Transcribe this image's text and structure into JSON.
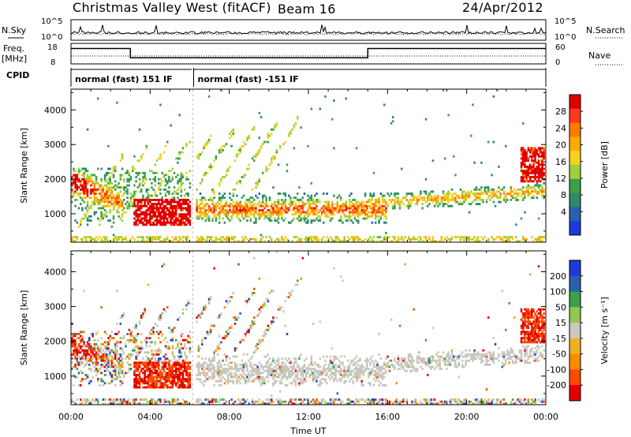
{
  "header": {
    "station": "Christmas Valley West (fitACF)",
    "beam": "Beam 16",
    "date": "24/Apr/2012"
  },
  "strips": {
    "nsky_label": "N.Sky",
    "nsky_ticks": [
      "10^5",
      "10^0"
    ],
    "nsearch_label": "N.Search",
    "nsearch_ticks": [
      "10^5",
      "10^0"
    ],
    "freq_label": "Freq.",
    "freq_unit": "[MHz]",
    "freq_ticks": [
      "18",
      "8"
    ],
    "nave_label": "Nave",
    "nave_ticks": [
      "60",
      "0"
    ],
    "cpid_label": "CPID",
    "cpid_segments": [
      {
        "label": "normal (fast) 151 IF",
        "start_hour": 0.0,
        "end_hour": 6.1
      },
      {
        "label": "normal (fast) -151 IF",
        "start_hour": 6.2,
        "end_hour": 24.0
      }
    ],
    "freq_steps": [
      {
        "start_hour": 0.0,
        "end_hour": 3.0,
        "level": 0.25
      },
      {
        "start_hour": 3.0,
        "end_hour": 6.1,
        "level": 0.7
      },
      {
        "start_hour": 6.2,
        "end_hour": 15.0,
        "level": 0.7
      },
      {
        "start_hour": 15.0,
        "end_hour": 24.0,
        "level": 0.25
      }
    ]
  },
  "chart_data": [
    {
      "type": "heatmap",
      "name": "power",
      "xlabel": "Time UT",
      "ylabel": "Slant Range [km]",
      "x_range_hours": [
        0,
        24
      ],
      "ylim": [
        180,
        4600
      ],
      "x_tick_labels": [
        "00:00",
        "04:00",
        "08:00",
        "12:00",
        "16:00",
        "20:00",
        "00:00"
      ],
      "y_tick_values": [
        1000,
        2000,
        3000,
        4000
      ],
      "colorbar": {
        "label": "Power [dB]",
        "ticks": [
          "28",
          "24",
          "20",
          "16",
          "12",
          "8",
          "4"
        ],
        "colors": [
          "#e00000",
          "#ff3a1a",
          "#ff7a00",
          "#ffaa00",
          "#f2d21e",
          "#9ed03c",
          "#3aa04a",
          "#2c8a6a",
          "#2a5fb0",
          "#1e3ad8"
        ]
      }
    },
    {
      "type": "heatmap",
      "name": "velocity",
      "xlabel": "Time UT",
      "ylabel": "Slant Range [km]",
      "x_range_hours": [
        0,
        24
      ],
      "ylim": [
        180,
        4600
      ],
      "x_tick_labels": [
        "00:00",
        "04:00",
        "08:00",
        "12:00",
        "16:00",
        "20:00",
        "00:00"
      ],
      "y_tick_values": [
        1000,
        2000,
        3000,
        4000
      ],
      "colorbar": {
        "label": "Velocity [m s⁻¹]",
        "ticks": [
          "200",
          "100",
          "50",
          "15",
          "-15",
          "-50",
          "-100",
          "-200"
        ],
        "colors": [
          "#1e3ad8",
          "#2a5fb0",
          "#3aa04a",
          "#90c850",
          "#c8c8c0",
          "#f2b020",
          "#ff8a00",
          "#ff4a00",
          "#e00000"
        ]
      }
    }
  ]
}
